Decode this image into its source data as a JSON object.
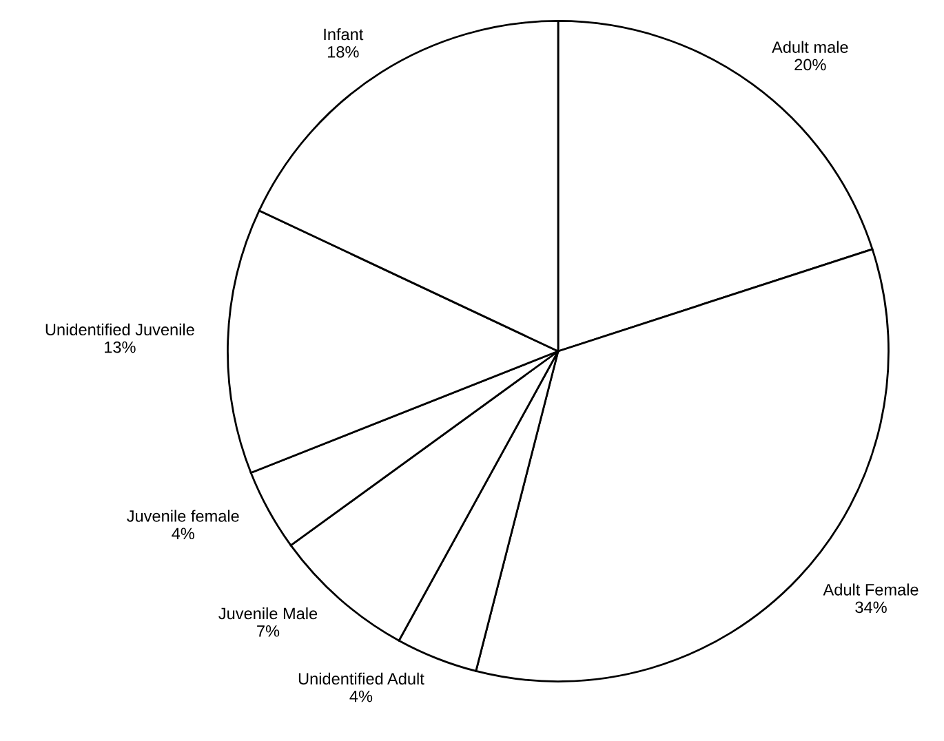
{
  "chart_data": {
    "type": "pie",
    "categories": [
      "Adult male",
      "Adult Female",
      "Unidentified Adult",
      "Juvenile Male",
      "Juvenile female",
      "Unidentified Juvenile",
      "Infant"
    ],
    "values": [
      20,
      34,
      4,
      7,
      4,
      13,
      18
    ],
    "value_labels": [
      "20%",
      "34%",
      "4%",
      "7%",
      "4%",
      "13%",
      "18%"
    ],
    "colors": [
      "#ffffff",
      "#ffffff",
      "#ffffff",
      "#ffffff",
      "#ffffff",
      "#ffffff",
      "#ffffff"
    ],
    "legend": false
  }
}
